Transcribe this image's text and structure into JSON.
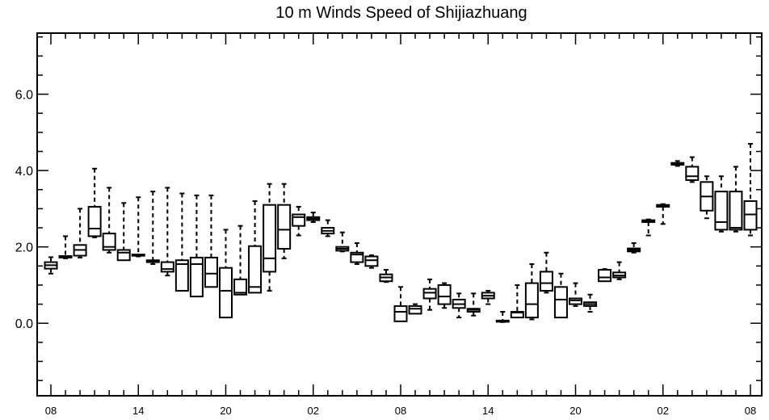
{
  "chart_data": {
    "type": "box",
    "title": "10 m Winds Speed of Shijiazhuang",
    "xlabel": "",
    "ylabel": "",
    "ylim": [
      -1.9,
      7.6
    ],
    "yticks": [
      0.0,
      2.0,
      4.0,
      6.0
    ],
    "ytick_labels": [
      "0.0",
      "2.0",
      "4.0",
      "6.0"
    ],
    "xlim": [
      0,
      48
    ],
    "xticks": [
      0,
      6,
      12,
      18,
      24,
      30,
      36,
      42,
      48
    ],
    "xtick_labels": [
      "08",
      "14",
      "20",
      "02",
      "08",
      "14",
      "20",
      "02",
      "08"
    ],
    "grid": false,
    "series": [
      {
        "boxes": [
          {
            "x": 0,
            "min": 1.3,
            "q1": 1.43,
            "median": 1.52,
            "q3": 1.6,
            "max": 1.73
          },
          {
            "x": 1,
            "min": 1.7,
            "q1": 1.72,
            "median": 1.74,
            "q3": 1.76,
            "max": 2.28
          },
          {
            "x": 2,
            "min": 1.72,
            "q1": 1.77,
            "median": 1.92,
            "q3": 2.05,
            "max": 3.0
          },
          {
            "x": 3,
            "min": 2.25,
            "q1": 2.28,
            "median": 2.48,
            "q3": 3.05,
            "max": 4.05
          },
          {
            "x": 4,
            "min": 1.85,
            "q1": 1.92,
            "median": 2.0,
            "q3": 2.35,
            "max": 3.55
          },
          {
            "x": 5,
            "min": 1.65,
            "q1": 1.65,
            "median": 1.85,
            "q3": 1.92,
            "max": 3.15
          },
          {
            "x": 6,
            "min": 1.75,
            "q1": 1.77,
            "median": 1.79,
            "q3": 1.8,
            "max": 3.3
          },
          {
            "x": 7,
            "min": 1.55,
            "q1": 1.6,
            "median": 1.63,
            "q3": 1.65,
            "max": 3.45
          },
          {
            "x": 8,
            "min": 1.25,
            "q1": 1.35,
            "median": 1.42,
            "q3": 1.6,
            "max": 3.55
          },
          {
            "x": 9,
            "min": 0.85,
            "q1": 0.85,
            "median": 1.55,
            "q3": 1.65,
            "max": 3.4
          },
          {
            "x": 10,
            "min": 0.7,
            "q1": 0.7,
            "median": 1.55,
            "q3": 1.72,
            "max": 3.35
          },
          {
            "x": 11,
            "min": 0.95,
            "q1": 0.95,
            "median": 1.3,
            "q3": 1.72,
            "max": 3.35
          },
          {
            "x": 12,
            "min": 0.15,
            "q1": 0.15,
            "median": 0.85,
            "q3": 1.45,
            "max": 2.45
          },
          {
            "x": 13,
            "min": 0.75,
            "q1": 0.75,
            "median": 0.8,
            "q3": 1.15,
            "max": 2.55
          },
          {
            "x": 14,
            "min": 0.8,
            "q1": 0.8,
            "median": 0.95,
            "q3": 2.02,
            "max": 3.2
          },
          {
            "x": 15,
            "min": 0.85,
            "q1": 1.35,
            "median": 1.7,
            "q3": 3.1,
            "max": 3.65
          },
          {
            "x": 16,
            "min": 1.7,
            "q1": 1.95,
            "median": 2.45,
            "q3": 3.1,
            "max": 3.65
          },
          {
            "x": 17,
            "min": 2.3,
            "q1": 2.55,
            "median": 2.78,
            "q3": 2.85,
            "max": 3.05
          },
          {
            "x": 18,
            "min": 2.65,
            "q1": 2.7,
            "median": 2.74,
            "q3": 2.78,
            "max": 2.9
          },
          {
            "x": 19,
            "min": 2.28,
            "q1": 2.35,
            "median": 2.42,
            "q3": 2.5,
            "max": 2.7
          },
          {
            "x": 20,
            "min": 1.88,
            "q1": 1.9,
            "median": 1.95,
            "q3": 2.0,
            "max": 2.38
          },
          {
            "x": 21,
            "min": 1.55,
            "q1": 1.6,
            "median": 1.8,
            "q3": 1.85,
            "max": 2.1
          },
          {
            "x": 22,
            "min": 1.45,
            "q1": 1.5,
            "median": 1.65,
            "q3": 1.75,
            "max": 1.78
          },
          {
            "x": 23,
            "min": 1.08,
            "q1": 1.1,
            "median": 1.2,
            "q3": 1.28,
            "max": 1.4
          },
          {
            "x": 24,
            "min": 0.05,
            "q1": 0.05,
            "median": 0.3,
            "q3": 0.45,
            "max": 0.95
          },
          {
            "x": 25,
            "min": 0.25,
            "q1": 0.25,
            "median": 0.38,
            "q3": 0.45,
            "max": 0.5
          },
          {
            "x": 26,
            "min": 0.35,
            "q1": 0.65,
            "median": 0.8,
            "q3": 0.9,
            "max": 1.15
          },
          {
            "x": 27,
            "min": 0.4,
            "q1": 0.5,
            "median": 0.7,
            "q3": 1.0,
            "max": 1.05
          },
          {
            "x": 28,
            "min": 0.15,
            "q1": 0.4,
            "median": 0.5,
            "q3": 0.62,
            "max": 0.78
          },
          {
            "x": 29,
            "min": 0.2,
            "q1": 0.3,
            "median": 0.35,
            "q3": 0.38,
            "max": 0.78
          },
          {
            "x": 30,
            "min": 0.5,
            "q1": 0.65,
            "median": 0.72,
            "q3": 0.8,
            "max": 0.85
          },
          {
            "x": 31,
            "min": 0.03,
            "q1": 0.05,
            "median": 0.06,
            "q3": 0.07,
            "max": 0.3
          },
          {
            "x": 32,
            "min": 0.15,
            "q1": 0.15,
            "median": 0.28,
            "q3": 0.3,
            "max": 1.0
          },
          {
            "x": 33,
            "min": 0.1,
            "q1": 0.15,
            "median": 0.5,
            "q3": 1.05,
            "max": 1.55
          },
          {
            "x": 34,
            "min": 0.8,
            "q1": 0.85,
            "median": 1.05,
            "q3": 1.35,
            "max": 1.85
          },
          {
            "x": 35,
            "min": 0.15,
            "q1": 0.15,
            "median": 0.62,
            "q3": 0.95,
            "max": 1.3
          },
          {
            "x": 36,
            "min": 0.45,
            "q1": 0.5,
            "median": 0.6,
            "q3": 0.65,
            "max": 1.05
          },
          {
            "x": 37,
            "min": 0.3,
            "q1": 0.45,
            "median": 0.5,
            "q3": 0.55,
            "max": 0.75
          },
          {
            "x": 38,
            "min": 1.1,
            "q1": 1.1,
            "median": 1.2,
            "q3": 1.4,
            "max": 1.42
          },
          {
            "x": 39,
            "min": 1.15,
            "q1": 1.2,
            "median": 1.25,
            "q3": 1.33,
            "max": 1.6
          },
          {
            "x": 40,
            "min": 1.85,
            "q1": 1.88,
            "median": 1.92,
            "q3": 1.96,
            "max": 2.1
          },
          {
            "x": 41,
            "min": 2.3,
            "q1": 2.65,
            "median": 2.68,
            "q3": 2.7,
            "max": 2.72
          },
          {
            "x": 42,
            "min": 2.6,
            "q1": 3.05,
            "median": 3.08,
            "q3": 3.1,
            "max": 3.12
          },
          {
            "x": 43,
            "min": 4.12,
            "q1": 4.15,
            "median": 4.18,
            "q3": 4.2,
            "max": 4.25
          },
          {
            "x": 44,
            "min": 3.7,
            "q1": 3.75,
            "median": 3.85,
            "q3": 4.1,
            "max": 4.35
          },
          {
            "x": 45,
            "min": 2.75,
            "q1": 2.95,
            "median": 3.32,
            "q3": 3.7,
            "max": 3.85
          },
          {
            "x": 46,
            "min": 2.4,
            "q1": 2.45,
            "median": 2.65,
            "q3": 3.45,
            "max": 3.85
          },
          {
            "x": 47,
            "min": 2.4,
            "q1": 2.45,
            "median": 2.5,
            "q3": 3.45,
            "max": 4.1
          },
          {
            "x": 48,
            "min": 2.3,
            "q1": 2.45,
            "median": 2.85,
            "q3": 3.2,
            "max": 4.7
          }
        ]
      }
    ]
  }
}
